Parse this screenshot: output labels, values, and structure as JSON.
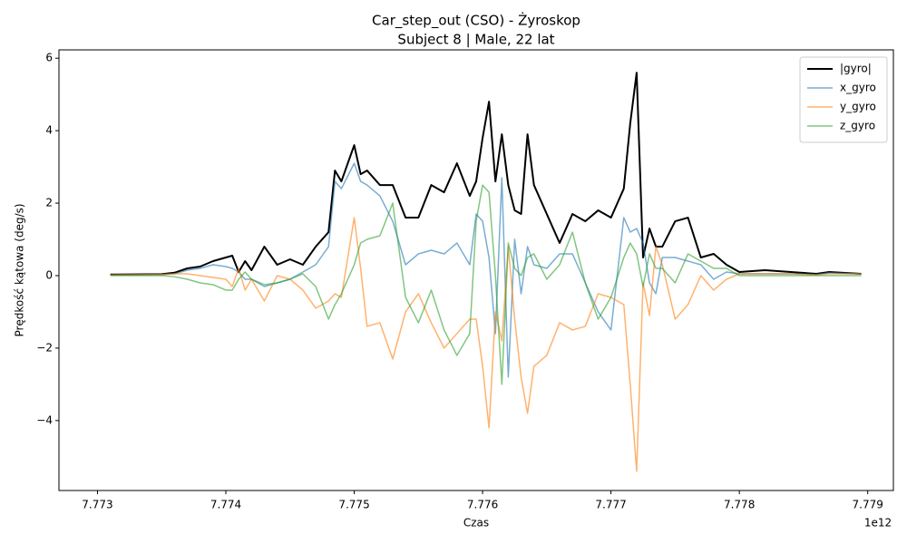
{
  "chart_data": {
    "type": "line",
    "title": "Car_step_out (CSO) - Żyroskop",
    "subtitle": "Subject 8 | Male, 22 lat",
    "x_label": "Czas",
    "y_label": "Prędkość kątowa (deg/s)",
    "x_offset_label": "1e12",
    "xlim": [
      7.7727,
      7.7792
    ],
    "xticks": [
      7.773,
      7.774,
      7.775,
      7.776,
      7.777,
      7.778,
      7.779
    ],
    "ylim": [
      -5.93,
      6.23
    ],
    "yticks": [
      {
        "value": -4,
        "label": "−4"
      },
      {
        "value": -2,
        "label": "−2"
      },
      0,
      2,
      4,
      6
    ],
    "legend": "upper right",
    "x": [
      7.7731,
      7.7735,
      7.7736,
      7.7737,
      7.7738,
      7.7739,
      7.774,
      7.77405,
      7.7741,
      7.77415,
      7.7742,
      7.7743,
      7.7744,
      7.7745,
      7.7746,
      7.7747,
      7.7748,
      7.77485,
      7.7749,
      7.775,
      7.77505,
      7.7751,
      7.7752,
      7.7753,
      7.7754,
      7.7755,
      7.7756,
      7.7757,
      7.7758,
      7.7759,
      7.77595,
      7.776,
      7.77605,
      7.7761,
      7.77615,
      7.7762,
      7.77625,
      7.7763,
      7.77635,
      7.7764,
      7.7765,
      7.7766,
      7.7767,
      7.7768,
      7.7769,
      7.777,
      7.7771,
      7.77715,
      7.7772,
      7.77725,
      7.7773,
      7.77735,
      7.7774,
      7.7775,
      7.7776,
      7.7777,
      7.7778,
      7.7779,
      7.778,
      7.7782,
      7.7784,
      7.7786,
      7.7787,
      7.77895
    ],
    "series": [
      {
        "name": "|gyro|",
        "color": "#000000",
        "values": [
          0.03,
          0.04,
          0.08,
          0.2,
          0.25,
          0.4,
          0.5,
          0.55,
          0.1,
          0.4,
          0.15,
          0.8,
          0.3,
          0.45,
          0.3,
          0.8,
          1.2,
          2.9,
          2.6,
          3.6,
          2.8,
          2.9,
          2.5,
          2.5,
          1.6,
          1.6,
          2.5,
          2.3,
          3.1,
          2.2,
          2.6,
          3.8,
          4.8,
          2.6,
          3.9,
          2.5,
          1.8,
          1.7,
          3.9,
          2.5,
          1.7,
          0.9,
          1.7,
          1.5,
          1.8,
          1.6,
          2.4,
          4.2,
          5.6,
          0.5,
          1.3,
          0.8,
          0.8,
          1.5,
          1.6,
          0.5,
          0.6,
          0.3,
          0.1,
          0.15,
          0.1,
          0.05,
          0.1,
          0.05
        ]
      },
      {
        "name": "x_gyro",
        "color": "#1f77b4",
        "values": [
          0.02,
          0.03,
          0.05,
          0.15,
          0.2,
          0.3,
          0.25,
          0.2,
          0.1,
          -0.1,
          -0.1,
          -0.3,
          -0.2,
          -0.1,
          0.1,
          0.3,
          0.8,
          2.6,
          2.4,
          3.1,
          2.6,
          2.5,
          2.2,
          1.5,
          0.3,
          0.6,
          0.7,
          0.6,
          0.9,
          0.3,
          1.7,
          1.5,
          0.5,
          -1.6,
          2.7,
          -2.8,
          1.0,
          -0.5,
          0.8,
          0.3,
          0.2,
          0.6,
          0.6,
          -0.2,
          -1.0,
          -1.5,
          1.6,
          1.2,
          1.3,
          0.9,
          -0.2,
          -0.5,
          0.5,
          0.5,
          0.4,
          0.3,
          -0.1,
          0.1,
          0.05,
          0.05,
          0.05,
          0.03,
          0.08,
          0.05
        ]
      },
      {
        "name": "y_gyro",
        "color": "#ff7f0e",
        "values": [
          0.02,
          0.03,
          0.05,
          0.05,
          0.0,
          -0.05,
          -0.1,
          -0.3,
          0.2,
          -0.4,
          -0.1,
          -0.7,
          0.0,
          -0.1,
          -0.4,
          -0.9,
          -0.7,
          -0.5,
          -0.6,
          1.6,
          0.2,
          -1.4,
          -1.3,
          -2.3,
          -1.0,
          -0.5,
          -1.3,
          -2.0,
          -1.6,
          -1.2,
          -1.2,
          -2.5,
          -4.2,
          -1.0,
          -1.8,
          0.8,
          -1.2,
          -2.8,
          -3.8,
          -2.5,
          -2.2,
          -1.3,
          -1.5,
          -1.4,
          -0.5,
          -0.6,
          -0.8,
          -3.0,
          -5.4,
          -0.2,
          -1.1,
          0.8,
          0.3,
          -1.2,
          -0.8,
          0.0,
          -0.4,
          -0.1,
          0.05,
          0.05,
          0.05,
          0.02,
          0.05,
          0.05
        ]
      },
      {
        "name": "z_gyro",
        "color": "#2ca02c",
        "values": [
          0.0,
          0.0,
          -0.03,
          -0.1,
          -0.2,
          -0.25,
          -0.4,
          -0.4,
          -0.1,
          0.1,
          -0.1,
          -0.25,
          -0.2,
          -0.1,
          0.05,
          -0.3,
          -1.2,
          -0.8,
          -0.5,
          0.3,
          0.9,
          1.0,
          1.1,
          2.0,
          -0.6,
          -1.3,
          -0.4,
          -1.5,
          -2.2,
          -1.6,
          1.5,
          2.5,
          2.3,
          0.0,
          -3.0,
          0.9,
          0.2,
          0.0,
          0.5,
          0.6,
          -0.1,
          0.3,
          1.2,
          -0.2,
          -1.2,
          -0.6,
          0.5,
          0.9,
          0.6,
          -0.3,
          0.6,
          0.2,
          0.2,
          -0.2,
          0.6,
          0.4,
          0.2,
          0.2,
          0.0,
          0.0,
          0.0,
          0.0,
          0.0,
          0.0
        ]
      }
    ]
  }
}
